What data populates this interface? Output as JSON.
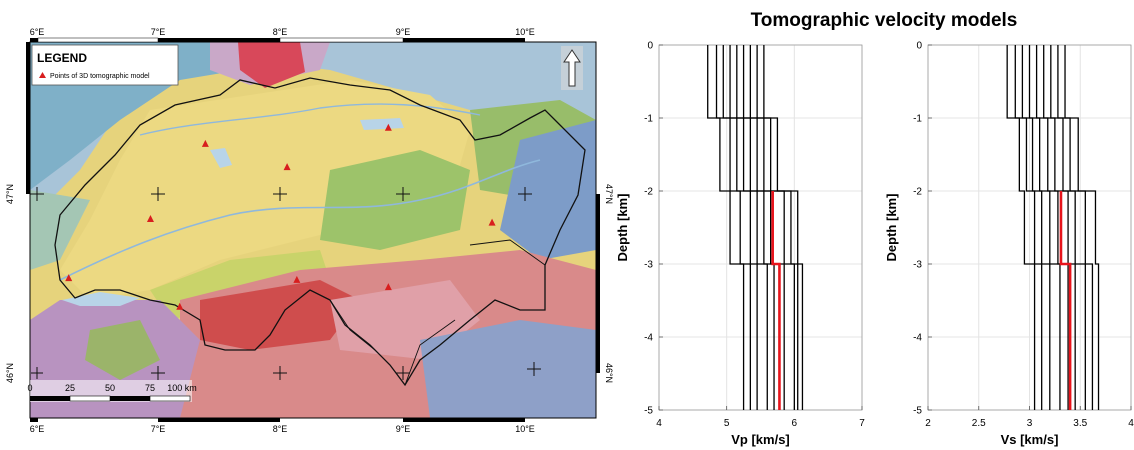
{
  "map": {
    "legend_title": "LEGEND",
    "legend_entry": "Points of 3D tomographic model",
    "lon_ticks": [
      "6°E",
      "7°E",
      "8°E",
      "9°E",
      "10°E"
    ],
    "lat_ticks_left": [
      "47°N",
      "46°N"
    ],
    "lat_ticks_right": [
      "47°N",
      "46°N"
    ],
    "scalebar_labels": [
      "0",
      "25",
      "50",
      "75",
      "100 km"
    ],
    "colors": {
      "marker": "#d81e1e",
      "border": "#111111",
      "frame": "#000000"
    },
    "points": [
      {
        "lon": 7.38,
        "lat": 47.28
      },
      {
        "lon": 8.05,
        "lat": 47.15
      },
      {
        "lon": 8.88,
        "lat": 47.37
      },
      {
        "lon": 6.93,
        "lat": 46.86
      },
      {
        "lon": 6.26,
        "lat": 46.53
      },
      {
        "lon": 8.13,
        "lat": 46.52
      },
      {
        "lon": 8.88,
        "lat": 46.48
      },
      {
        "lon": 7.17,
        "lat": 46.37
      },
      {
        "lon": 9.73,
        "lat": 46.84
      }
    ]
  },
  "chart_data": [
    {
      "type": "line",
      "title": "Tomographic velocity models",
      "xlabel": "Vp [km/s]",
      "ylabel": "Depth [km]",
      "xlim": [
        4,
        7
      ],
      "ylim": [
        -5,
        0
      ],
      "xticks": [
        4,
        5,
        6,
        7
      ],
      "yticks": [
        0,
        -1,
        -2,
        -3,
        -4,
        -5
      ],
      "grid": true,
      "layer_boundaries": [
        0,
        -1,
        -2,
        -3,
        -5
      ],
      "profiles": [
        [
          4.72,
          4.9,
          5.05,
          5.25
        ],
        [
          4.85,
          5.05,
          5.2,
          5.35
        ],
        [
          4.95,
          5.15,
          5.35,
          5.45
        ],
        [
          5.05,
          5.25,
          5.45,
          5.6
        ],
        [
          5.15,
          5.35,
          5.55,
          5.7
        ],
        [
          5.25,
          5.45,
          5.65,
          5.85
        ],
        [
          5.35,
          5.55,
          5.85,
          6.0
        ],
        [
          5.45,
          5.65,
          5.95,
          6.05
        ],
        [
          5.55,
          5.75,
          6.05,
          6.12
        ]
      ],
      "highlight": {
        "color": "#e8141c",
        "from_depth": -2,
        "values": [
          5.68,
          5.78
        ]
      }
    },
    {
      "type": "line",
      "xlabel": "Vs [km/s]",
      "ylabel": "Depth [km]",
      "xlim": [
        2,
        4
      ],
      "ylim": [
        -5,
        0
      ],
      "xticks": [
        2,
        2.5,
        3,
        3.5,
        4
      ],
      "yticks": [
        0,
        -1,
        -2,
        -3,
        -4,
        -5
      ],
      "grid": true,
      "layer_boundaries": [
        0,
        -1,
        -2,
        -3,
        -5
      ],
      "profiles": [
        [
          2.78,
          2.9,
          2.95,
          3.05
        ],
        [
          2.86,
          2.97,
          3.05,
          3.12
        ],
        [
          2.93,
          3.03,
          3.12,
          3.2
        ],
        [
          3.0,
          3.1,
          3.2,
          3.3
        ],
        [
          3.07,
          3.18,
          3.28,
          3.38
        ],
        [
          3.14,
          3.25,
          3.38,
          3.45
        ],
        [
          3.21,
          3.33,
          3.45,
          3.55
        ],
        [
          3.28,
          3.4,
          3.55,
          3.62
        ],
        [
          3.35,
          3.48,
          3.65,
          3.68
        ]
      ],
      "highlight": {
        "color": "#e8141c",
        "from_depth": -2,
        "values": [
          3.31,
          3.4
        ]
      }
    }
  ]
}
